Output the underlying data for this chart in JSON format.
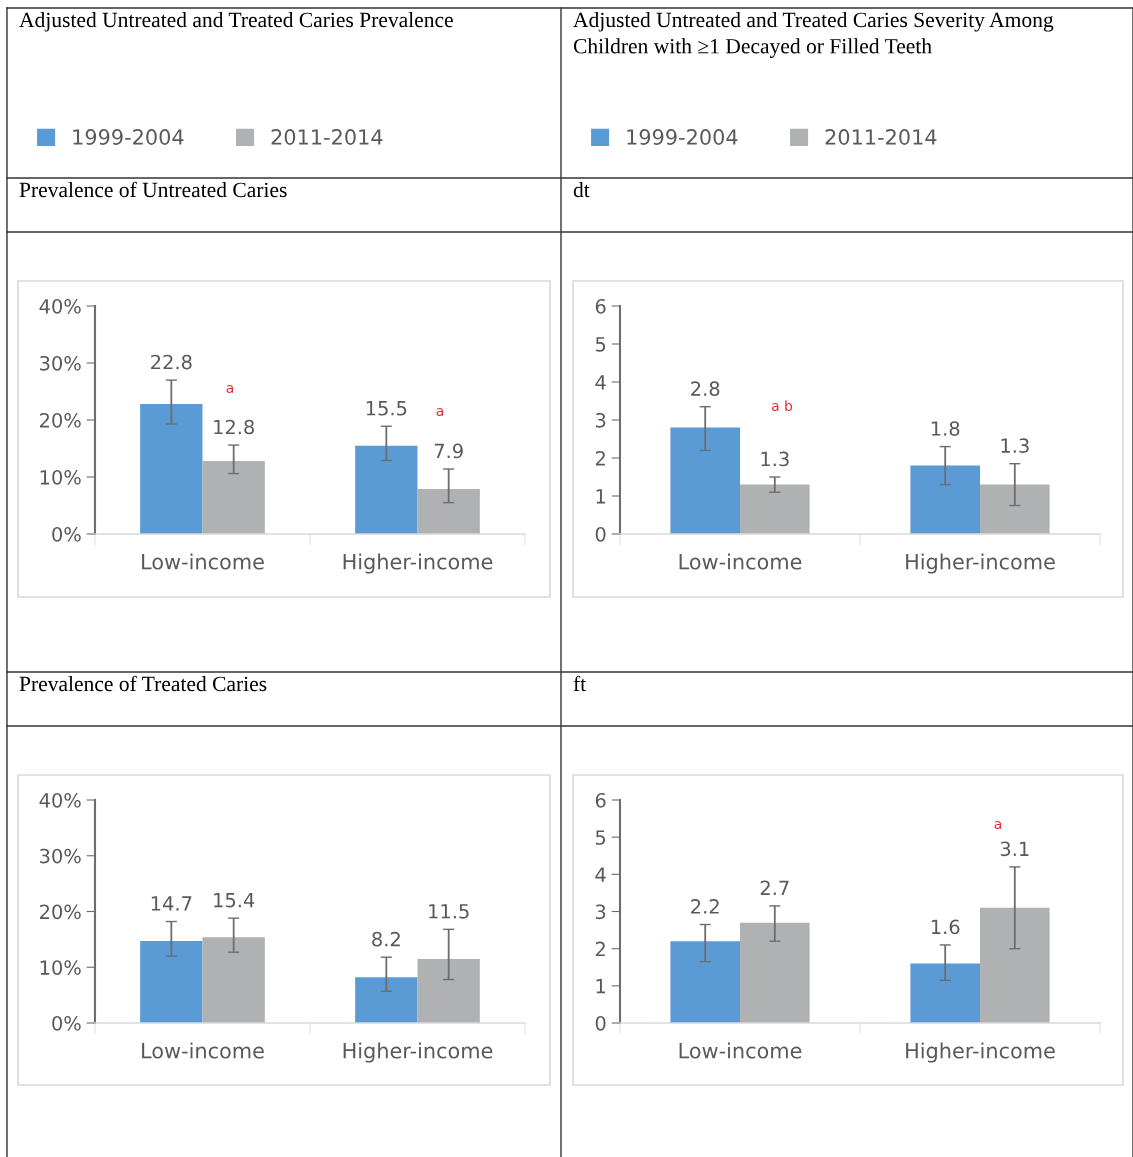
{
  "chart_data": [
    {
      "type": "bar",
      "title": "Adjusted Untreated and Treated Caries Prevalence",
      "subtitle": "Prevalence of Untreated Caries",
      "categories": [
        "Low-income",
        "Higher-income"
      ],
      "series": [
        {
          "name": "1999-2004",
          "color": "#5b9bd5",
          "values": [
            22.8,
            15.5
          ],
          "errors": [
            [
              19.3,
              27.0
            ],
            [
              12.9,
              18.9
            ]
          ]
        },
        {
          "name": "2011-2014",
          "color": "#b0b1b3",
          "values": [
            12.8,
            7.9
          ],
          "errors": [
            [
              10.6,
              15.6
            ],
            [
              5.5,
              11.4
            ]
          ]
        }
      ],
      "ylim": [
        0,
        40
      ],
      "yticks": [
        {
          "value": 0,
          "label": "0%"
        },
        {
          "value": 10,
          "label": "10%"
        },
        {
          "value": 20,
          "label": "20%"
        },
        {
          "value": 30,
          "label": "30%"
        },
        {
          "value": 40,
          "label": "40%"
        }
      ],
      "data_labels": true,
      "legend": "top",
      "grid": false,
      "annotations": [
        "a",
        "a"
      ]
    },
    {
      "type": "bar",
      "title": "Adjusted Untreated and Treated Caries Severity Among Children with ≥1 Decayed or Filled Teeth",
      "subtitle": "dt",
      "categories": [
        "Low-income",
        "Higher-income"
      ],
      "series": [
        {
          "name": "1999-2004",
          "color": "#5b9bd5",
          "values": [
            2.8,
            1.8
          ],
          "errors": [
            [
              2.2,
              3.35
            ],
            [
              1.3,
              2.3
            ]
          ]
        },
        {
          "name": "2011-2014",
          "color": "#b0b1b3",
          "values": [
            1.3,
            1.3
          ],
          "errors": [
            [
              1.1,
              1.5
            ],
            [
              0.75,
              1.85
            ]
          ]
        }
      ],
      "ylim": [
        0,
        6
      ],
      "yticks": [
        0,
        1,
        2,
        3,
        4,
        5,
        6
      ],
      "data_labels": true,
      "legend": "top",
      "grid": false,
      "annotations": [
        "a b"
      ]
    },
    {
      "type": "bar",
      "title": "Prevalence of Treated Caries",
      "categories": [
        "Low-income",
        "Higher-income"
      ],
      "series": [
        {
          "color": "#5b9bd5",
          "values": [
            14.7,
            8.2
          ],
          "errors": [
            [
              12.0,
              18.2
            ],
            [
              5.7,
              11.8
            ]
          ]
        },
        {
          "color": "#b0b1b3",
          "values": [
            15.4,
            11.5
          ],
          "errors": [
            [
              12.7,
              18.8
            ],
            [
              7.8,
              16.8
            ]
          ]
        }
      ],
      "ylim": [
        0,
        40
      ],
      "yticks": [
        {
          "value": 0,
          "label": "0%"
        },
        {
          "value": 10,
          "label": "10%"
        },
        {
          "value": 20,
          "label": "20%"
        },
        {
          "value": 30,
          "label": "30%"
        },
        {
          "value": 40,
          "label": "40%"
        }
      ],
      "data_labels": true,
      "grid": false
    },
    {
      "type": "bar",
      "title": "ft",
      "categories": [
        "Low-income",
        "Higher-income"
      ],
      "series": [
        {
          "color": "#5b9bd5",
          "values": [
            2.2,
            1.6
          ],
          "errors": [
            [
              1.65,
              2.65
            ],
            [
              1.15,
              2.1
            ]
          ]
        },
        {
          "color": "#b0b1b3",
          "values": [
            2.7,
            3.1
          ],
          "errors": [
            [
              2.2,
              3.15
            ],
            [
              2.0,
              4.2
            ]
          ]
        }
      ],
      "ylim": [
        0,
        6
      ],
      "yticks": [
        0,
        1,
        2,
        3,
        4,
        5,
        6
      ],
      "data_labels": true,
      "grid": false,
      "annotations": [
        "a"
      ]
    }
  ]
}
